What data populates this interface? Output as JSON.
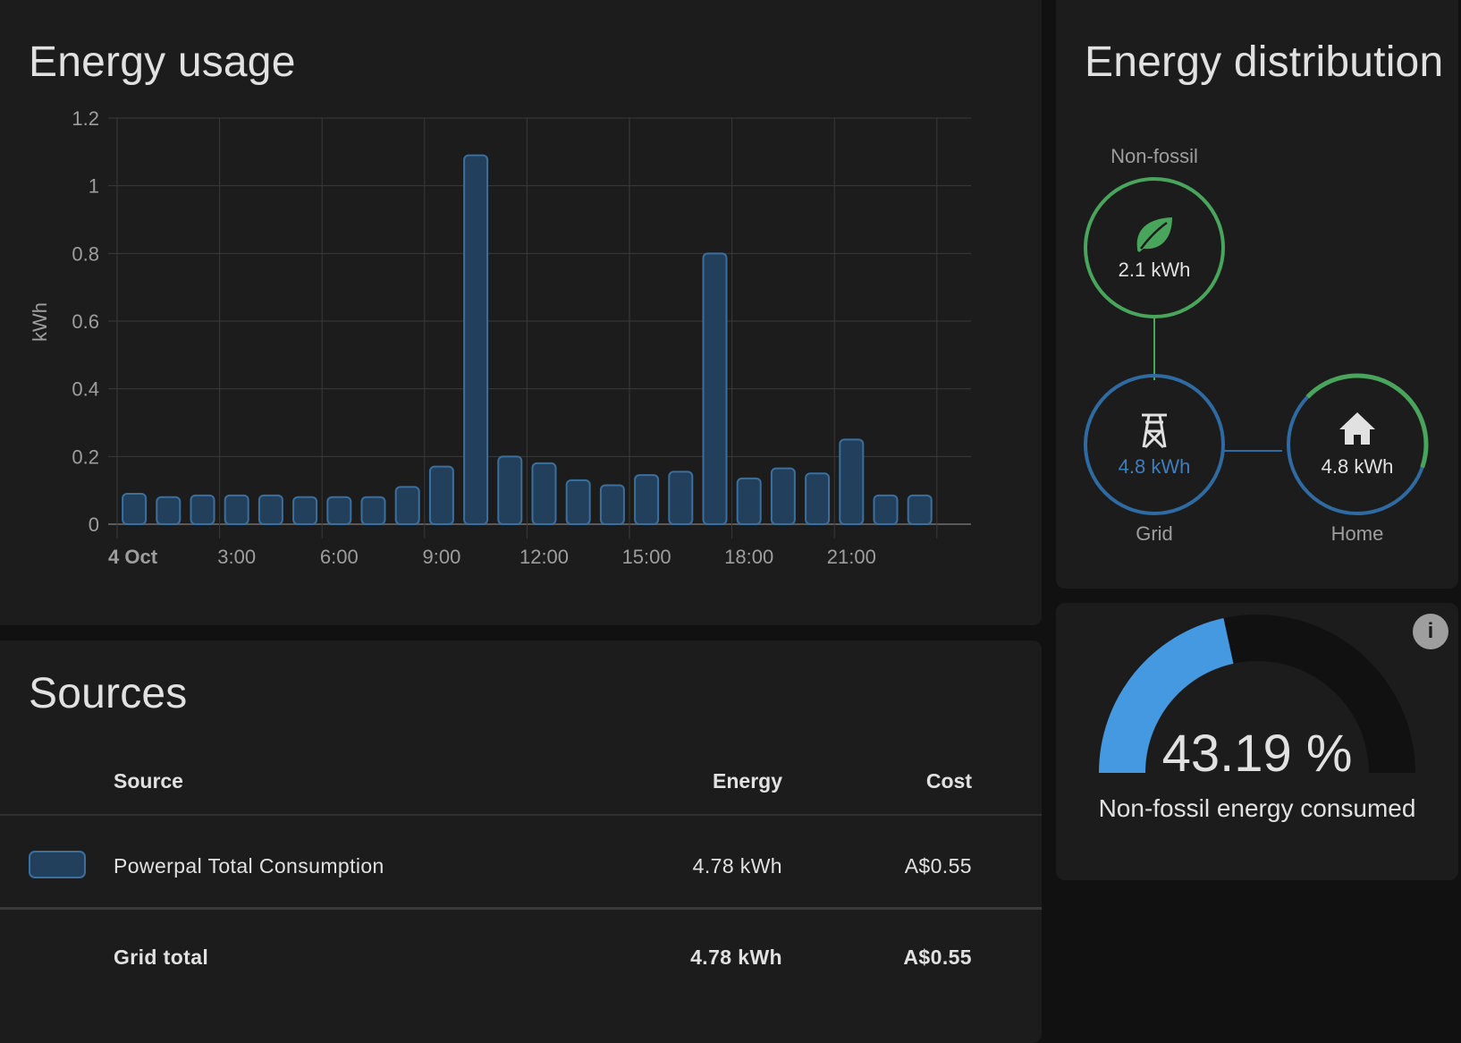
{
  "usage": {
    "title": "Energy usage"
  },
  "chart_data": {
    "type": "bar",
    "title": "Energy usage",
    "ylabel": "kWh",
    "xlabel": "",
    "ylim": [
      0,
      1.2
    ],
    "yticks": [
      "0",
      "0.2",
      "0.4",
      "0.6",
      "0.8",
      "1",
      "1.2"
    ],
    "ytick_values": [
      0,
      0.2,
      0.4,
      0.6,
      0.8,
      1.0,
      1.2
    ],
    "xtick_labels": [
      "4 Oct",
      "3:00",
      "6:00",
      "9:00",
      "12:00",
      "15:00",
      "18:00",
      "21:00"
    ],
    "xtick_hours": [
      0,
      3,
      6,
      9,
      12,
      15,
      18,
      21
    ],
    "grid": true,
    "series": [
      {
        "name": "Powerpal Total Consumption",
        "color": "#3a6f9e",
        "fill": "#223f5c",
        "hours": [
          0,
          1,
          2,
          3,
          4,
          5,
          6,
          7,
          8,
          9,
          10,
          11,
          12,
          13,
          14,
          15,
          16,
          17,
          18,
          19,
          20,
          21,
          22,
          23
        ],
        "values": [
          0.09,
          0.08,
          0.085,
          0.085,
          0.085,
          0.08,
          0.08,
          0.08,
          0.11,
          0.17,
          1.09,
          0.2,
          0.18,
          0.13,
          0.115,
          0.145,
          0.155,
          0.8,
          0.135,
          0.165,
          0.15,
          0.25,
          0.085,
          0.085
        ]
      }
    ]
  },
  "sources": {
    "title": "Sources",
    "headers": {
      "source": "Source",
      "energy": "Energy",
      "cost": "Cost"
    },
    "rows": [
      {
        "name": "Powerpal Total Consumption",
        "energy": "4.78 kWh",
        "cost": "A$0.55",
        "color": "#223f5c"
      }
    ],
    "total": {
      "name": "Grid total",
      "energy": "4.78 kWh",
      "cost": "A$0.55"
    }
  },
  "distribution": {
    "title": "Energy distribution",
    "non_fossil": {
      "label": "Non-fossil",
      "value": "2.1 kWh",
      "color": "#4aa55c"
    },
    "grid": {
      "label": "Grid",
      "value": "4.8 kWh",
      "color": "#2f6aa0"
    },
    "home": {
      "label": "Home",
      "value": "4.8 kWh"
    },
    "home_nonfossil_fraction": 0.4319
  },
  "gauge": {
    "value_text": "43.19 %",
    "value": 43.19,
    "label": "Non-fossil energy consumed",
    "color": "#4599e0",
    "info_icon": "info-icon"
  }
}
